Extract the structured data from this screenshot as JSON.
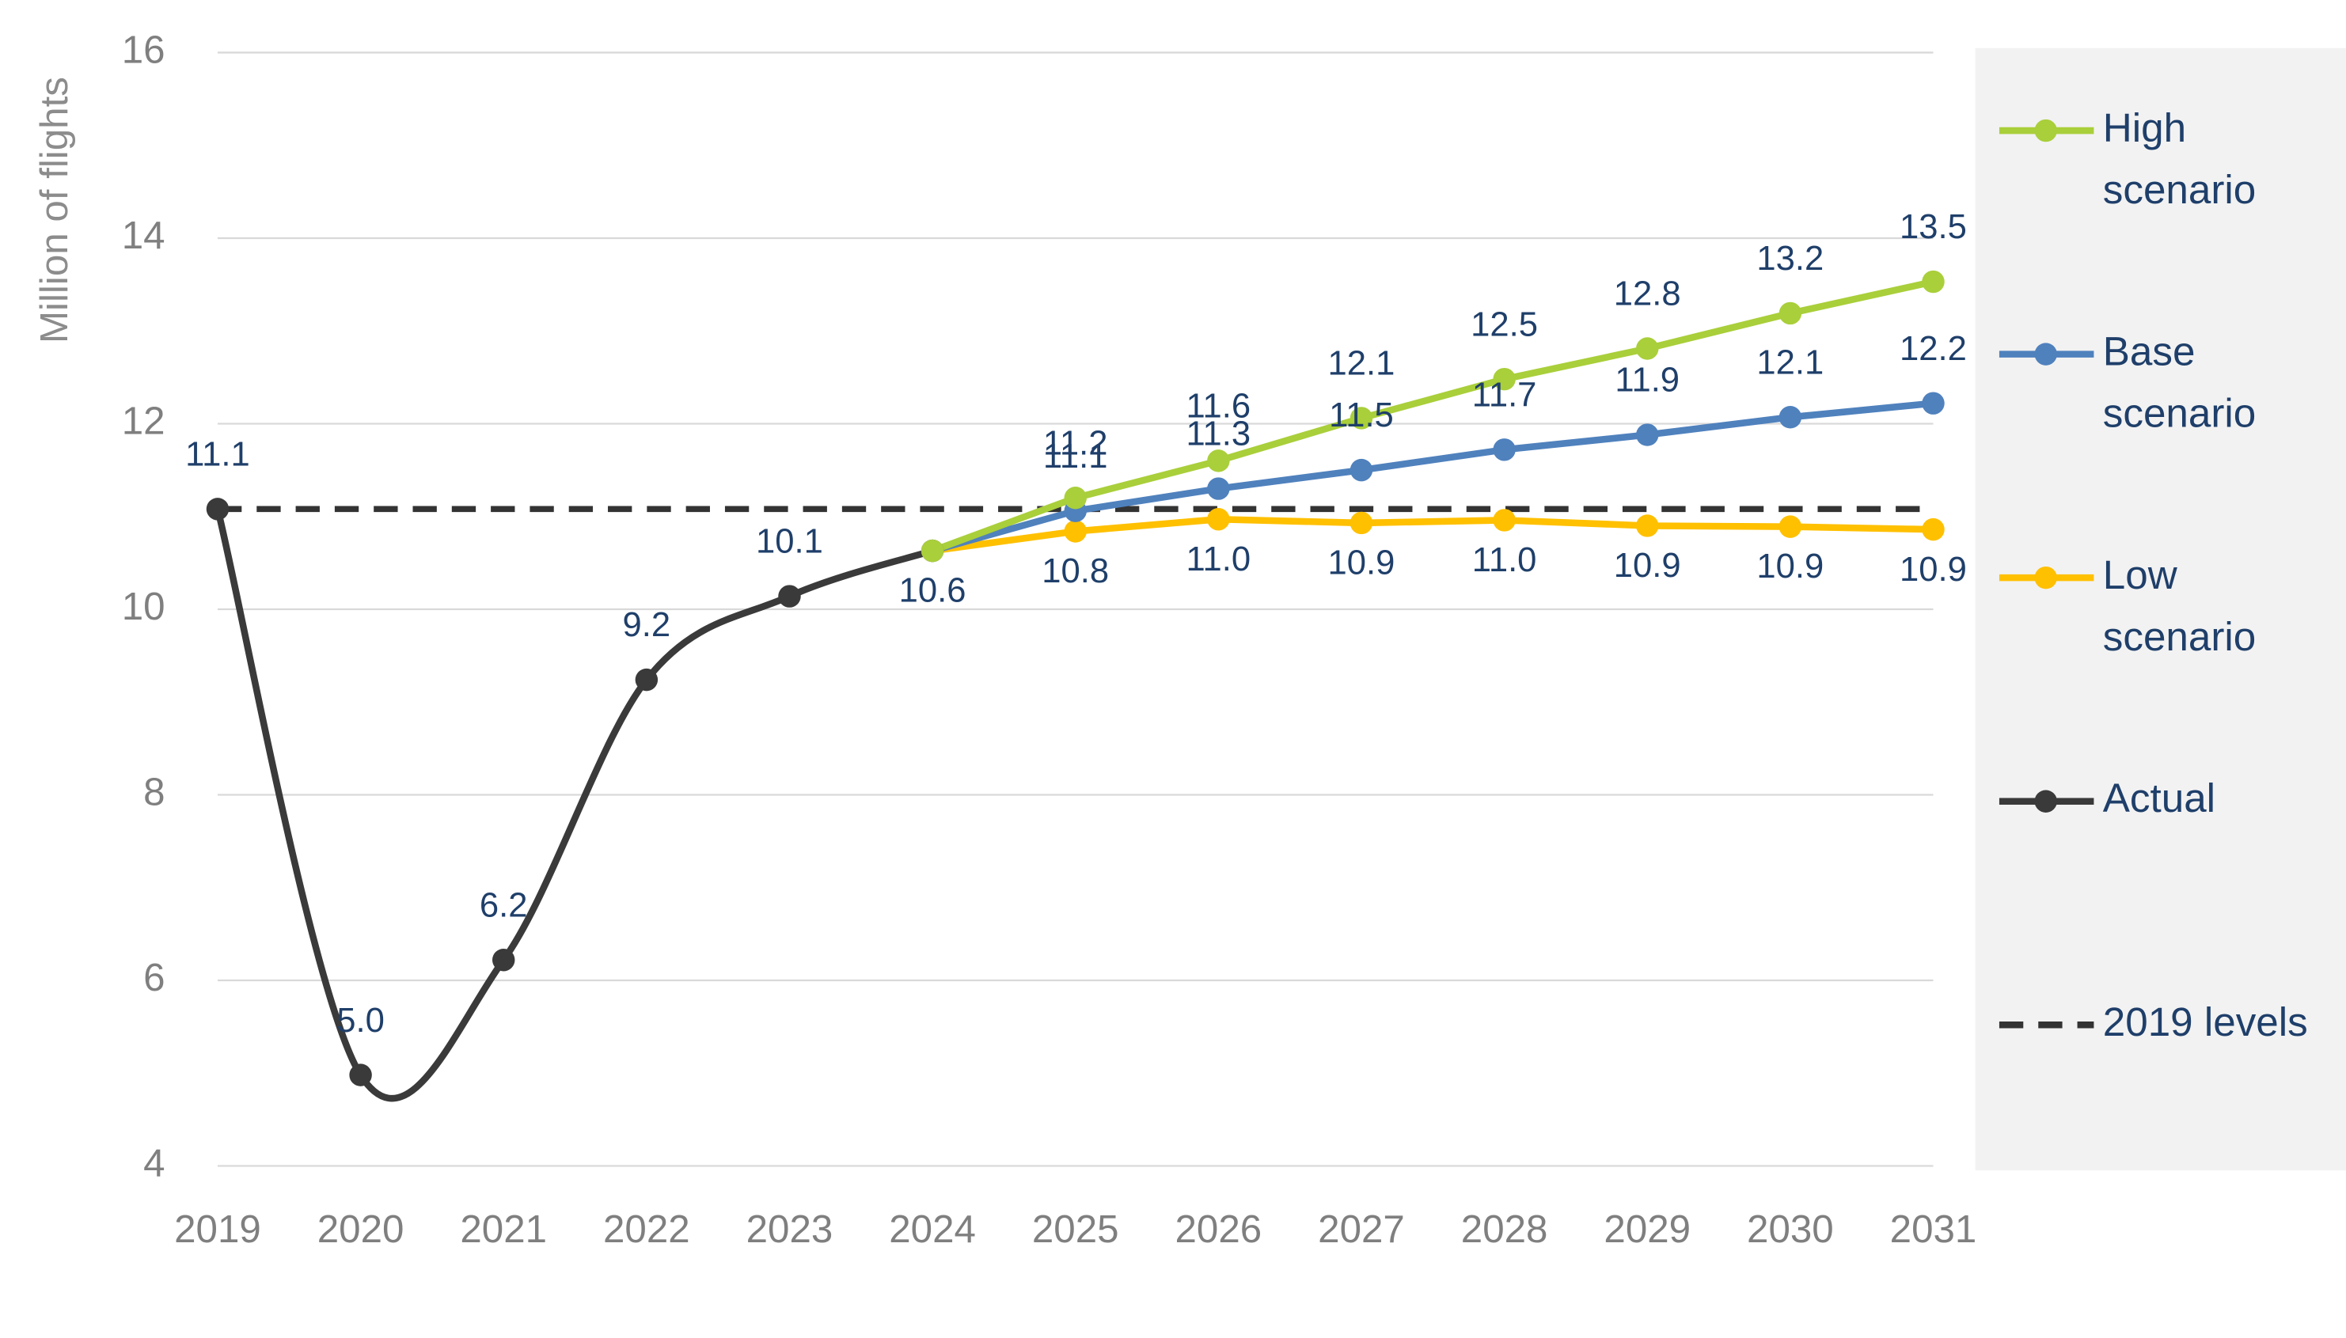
{
  "chart_data": {
    "type": "line",
    "ylabel": "Million of flights",
    "categories": [
      "2019",
      "2020",
      "2021",
      "2022",
      "2023",
      "2024",
      "2025",
      "2026",
      "2027",
      "2028",
      "2029",
      "2030",
      "2031"
    ],
    "ylim": [
      4,
      16
    ],
    "yticks": [
      4,
      6,
      8,
      10,
      12,
      14,
      16
    ],
    "grid": true,
    "series": [
      {
        "name": "High scenario",
        "color": "#a9cf3a",
        "values": [
          null,
          null,
          null,
          null,
          null,
          10.63,
          11.2,
          11.6,
          12.06,
          12.48,
          12.81,
          13.19,
          13.53
        ],
        "value_labels": [
          null,
          null,
          null,
          null,
          null,
          null,
          "11.2",
          "11.6",
          "12.1",
          "12.5",
          "12.8",
          "13.2",
          "13.5"
        ]
      },
      {
        "name": "Base scenario",
        "color": "#4f81bd",
        "values": [
          null,
          null,
          null,
          null,
          null,
          10.63,
          11.06,
          11.3,
          11.5,
          11.72,
          11.88,
          12.07,
          12.22
        ],
        "value_labels": [
          null,
          null,
          null,
          null,
          null,
          null,
          "11.1",
          "11.3",
          "11.5",
          "11.7",
          "11.9",
          "12.1",
          "12.2"
        ]
      },
      {
        "name": "Low scenario",
        "color": "#ffc000",
        "values": [
          null,
          null,
          null,
          null,
          null,
          10.63,
          10.84,
          10.97,
          10.93,
          10.96,
          10.9,
          10.89,
          10.86
        ],
        "value_labels": [
          null,
          null,
          null,
          null,
          null,
          null,
          "10.8",
          "11.0",
          "10.9",
          "11.0",
          "10.9",
          "10.9",
          "10.9"
        ]
      },
      {
        "name": "Actual",
        "color": "#3a3a3a",
        "smooth": true,
        "values": [
          11.08,
          4.98,
          6.22,
          9.24,
          10.14,
          10.63,
          null,
          null,
          null,
          null,
          null,
          null,
          null
        ],
        "value_labels": [
          "11.1",
          "5.0",
          "6.2",
          "9.2",
          "10.1",
          "10.6",
          null,
          null,
          null,
          null,
          null,
          null,
          null
        ]
      }
    ],
    "reference": {
      "name": "2019 levels",
      "value": 11.08,
      "color": "#333333",
      "dashed": true
    }
  }
}
